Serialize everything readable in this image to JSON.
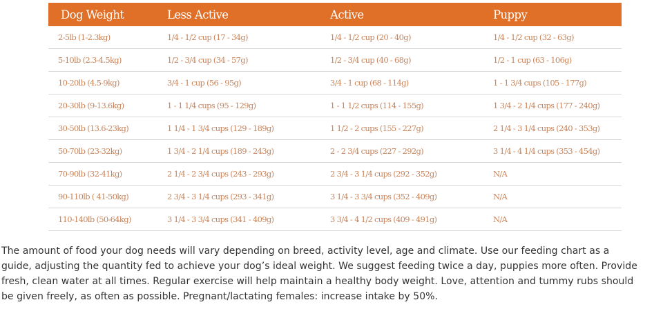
{
  "table": {
    "headers": [
      "Dog Weight",
      "Less Active",
      "Active",
      "Puppy"
    ],
    "rows": [
      [
        "2-5lb (1-2.3kg)",
        "1/4 - 1/2 cup (17 - 34g)",
        "1/4 - 1/2 cup (20 - 40g)",
        "1/4 - 1/2 cup (32 - 63g)"
      ],
      [
        "5-10lb (2.3-4.5kg)",
        "1/2 - 3/4 cup (34 - 57g)",
        "1/2 - 3/4 cup (40 - 68g)",
        "1/2 - 1 cup (63 - 106g)"
      ],
      [
        "10-20lb (4.5-9kg)",
        "3/4 - 1 cup (56 - 95g)",
        "3/4 - 1 cup (68 - 114g)",
        "1 - 1 3/4 cups (105 - 177g)"
      ],
      [
        "20-30lb (9-13.6kg)",
        "1 - 1 1/4 cups (95 - 129g)",
        "1 - 1 1/2 cups (114 - 155g)",
        "1 3/4 - 2 1/4 cups (177 - 240g)"
      ],
      [
        "30-50lb (13.6-23kg)",
        "1 1/4 - 1 3/4 cups (129 - 189g)",
        "1 1/2 - 2 cups (155 - 227g)",
        "2 1/4 - 3 1/4 cups (240 - 353g)"
      ],
      [
        "50-70lb (23-32kg)",
        "1 3/4 - 2 1/4 cups (189 - 243g)",
        "2 - 2 3/4 cups (227 - 292g)",
        "3 1/4 - 4 1/4 cups (353 - 454g)"
      ],
      [
        "70-90lb (32-41kg)",
        "2 1/4 - 2 3/4 cups (243 - 293g)",
        "2 3/4 - 3 1/4 cups (292 - 352g)",
        "N/A"
      ],
      [
        "90-110lb ( 41-50kg)",
        "2 3/4 - 3 1/4 cups (293 - 341g)",
        "3 1/4 - 3 3/4 cups (352 - 409g)",
        "N/A"
      ],
      [
        "110-140lb (50-64kg)",
        "3 1/4 - 3 3/4 cups (341 - 409g)",
        "3 3/4 - 4 1/2 cups (409 - 491g)",
        "N/A"
      ]
    ]
  },
  "paragraph": "The amount of food your dog needs will vary depending on breed, activity level, age and climate. Use our feeding chart as a guide, adjusting the quantity fed to achieve your dog’s ideal weight. We suggest feeding twice a day, puppies more often. Provide fresh, clean water at all times. Regular exercise will help maintain a healthy body weight. Love, attention and tummy rubs should be given freely, as often as possible.  Pregnant/lactating females: increase intake by 50%.",
  "colors": {
    "header_bg": "#e07027",
    "cell_text": "#c8845a",
    "body_text": "#333333"
  }
}
